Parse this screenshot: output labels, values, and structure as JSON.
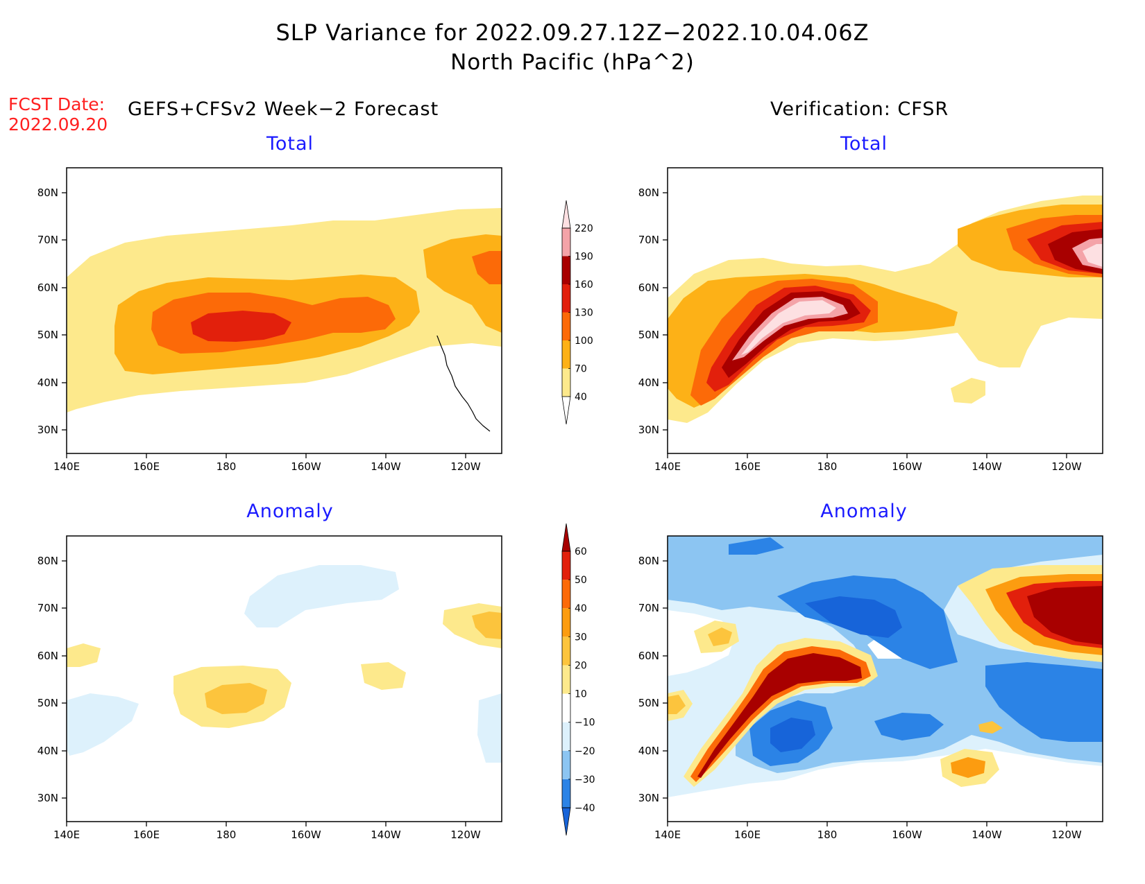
{
  "title": {
    "line1": "SLP Variance for 2022.09.27.12Z−2022.10.04.06Z",
    "line2": "North Pacific (hPa^2)"
  },
  "forecast_date": {
    "label": "FCST Date:",
    "value": "2022.09.20"
  },
  "left_column_title": "GEFS+CFSv2 Week−2 Forecast",
  "right_column_title": "Verification: CFSR",
  "panels": [
    {
      "id": "forecast-total",
      "title": "Total"
    },
    {
      "id": "verification-total",
      "title": "Total"
    },
    {
      "id": "forecast-anomaly",
      "title": "Anomaly"
    },
    {
      "id": "verification-anomaly",
      "title": "Anomaly"
    }
  ],
  "axes": {
    "lon_labels": [
      "140E",
      "160E",
      "180",
      "160W",
      "140W",
      "120W"
    ],
    "lat_labels": [
      "80N",
      "70N",
      "60N",
      "50N",
      "40N",
      "30N"
    ]
  },
  "colorbars": {
    "total": {
      "levels": [
        "40",
        "70",
        "100",
        "130",
        "160",
        "190",
        "220"
      ],
      "colors": [
        "#fde98c",
        "#fdb117",
        "#fc6a08",
        "#e2200c",
        "#a80000",
        "#f4a3a8",
        "#fde0e2"
      ]
    },
    "anomaly": {
      "levels": [
        "−40",
        "−30",
        "−20",
        "−10",
        "10",
        "20",
        "30",
        "40",
        "50",
        "60"
      ],
      "colors": [
        "#1764d9",
        "#2b83e6",
        "#8cc5f2",
        "#ddf1fc",
        "#ffffff",
        "#fde98c",
        "#fcc43d",
        "#fc9c10",
        "#fc6a08",
        "#e2200c",
        "#a80000"
      ]
    }
  }
}
